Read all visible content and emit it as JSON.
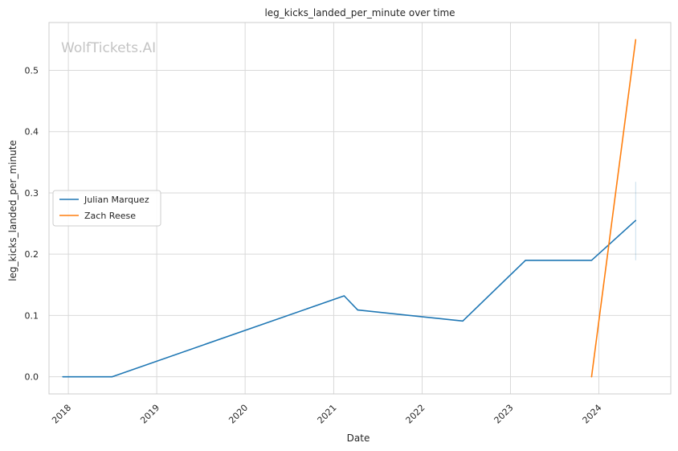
{
  "chart_data": {
    "type": "line",
    "title": "leg_kicks_landed_per_minute over time",
    "xlabel": "Date",
    "ylabel": "leg_kicks_landed_per_minute",
    "watermark": "WolfTickets.AI",
    "x_ticks": [
      "2018",
      "2019",
      "2020",
      "2021",
      "2022",
      "2023",
      "2024"
    ],
    "y_ticks": [
      "0.0",
      "0.1",
      "0.2",
      "0.3",
      "0.4",
      "0.5"
    ],
    "xlim": [
      "2017-10-13",
      "2024-10-24"
    ],
    "ylim": [
      -0.028,
      0.578
    ],
    "grid": true,
    "legend_position": "center-left",
    "series": [
      {
        "name": "Julian Marquez",
        "color": "#1f77b4",
        "points": [
          {
            "x": "2017-12-09",
            "y": 0.0
          },
          {
            "x": "2018-06-30",
            "y": 0.0
          },
          {
            "x": "2021-02-13",
            "y": 0.132
          },
          {
            "x": "2021-04-10",
            "y": 0.109
          },
          {
            "x": "2022-06-18",
            "y": 0.091
          },
          {
            "x": "2023-03-04",
            "y": 0.19
          },
          {
            "x": "2023-12-02",
            "y": 0.19
          },
          {
            "x": "2024-06-01",
            "y": 0.255
          }
        ],
        "band": {
          "x": "2024-06-01",
          "low": 0.19,
          "high": 0.318
        }
      },
      {
        "name": "Zach Reese",
        "color": "#ff7f0e",
        "points": [
          {
            "x": "2023-12-02",
            "y": 0.0
          },
          {
            "x": "2024-06-01",
            "y": 0.55
          }
        ]
      }
    ]
  }
}
